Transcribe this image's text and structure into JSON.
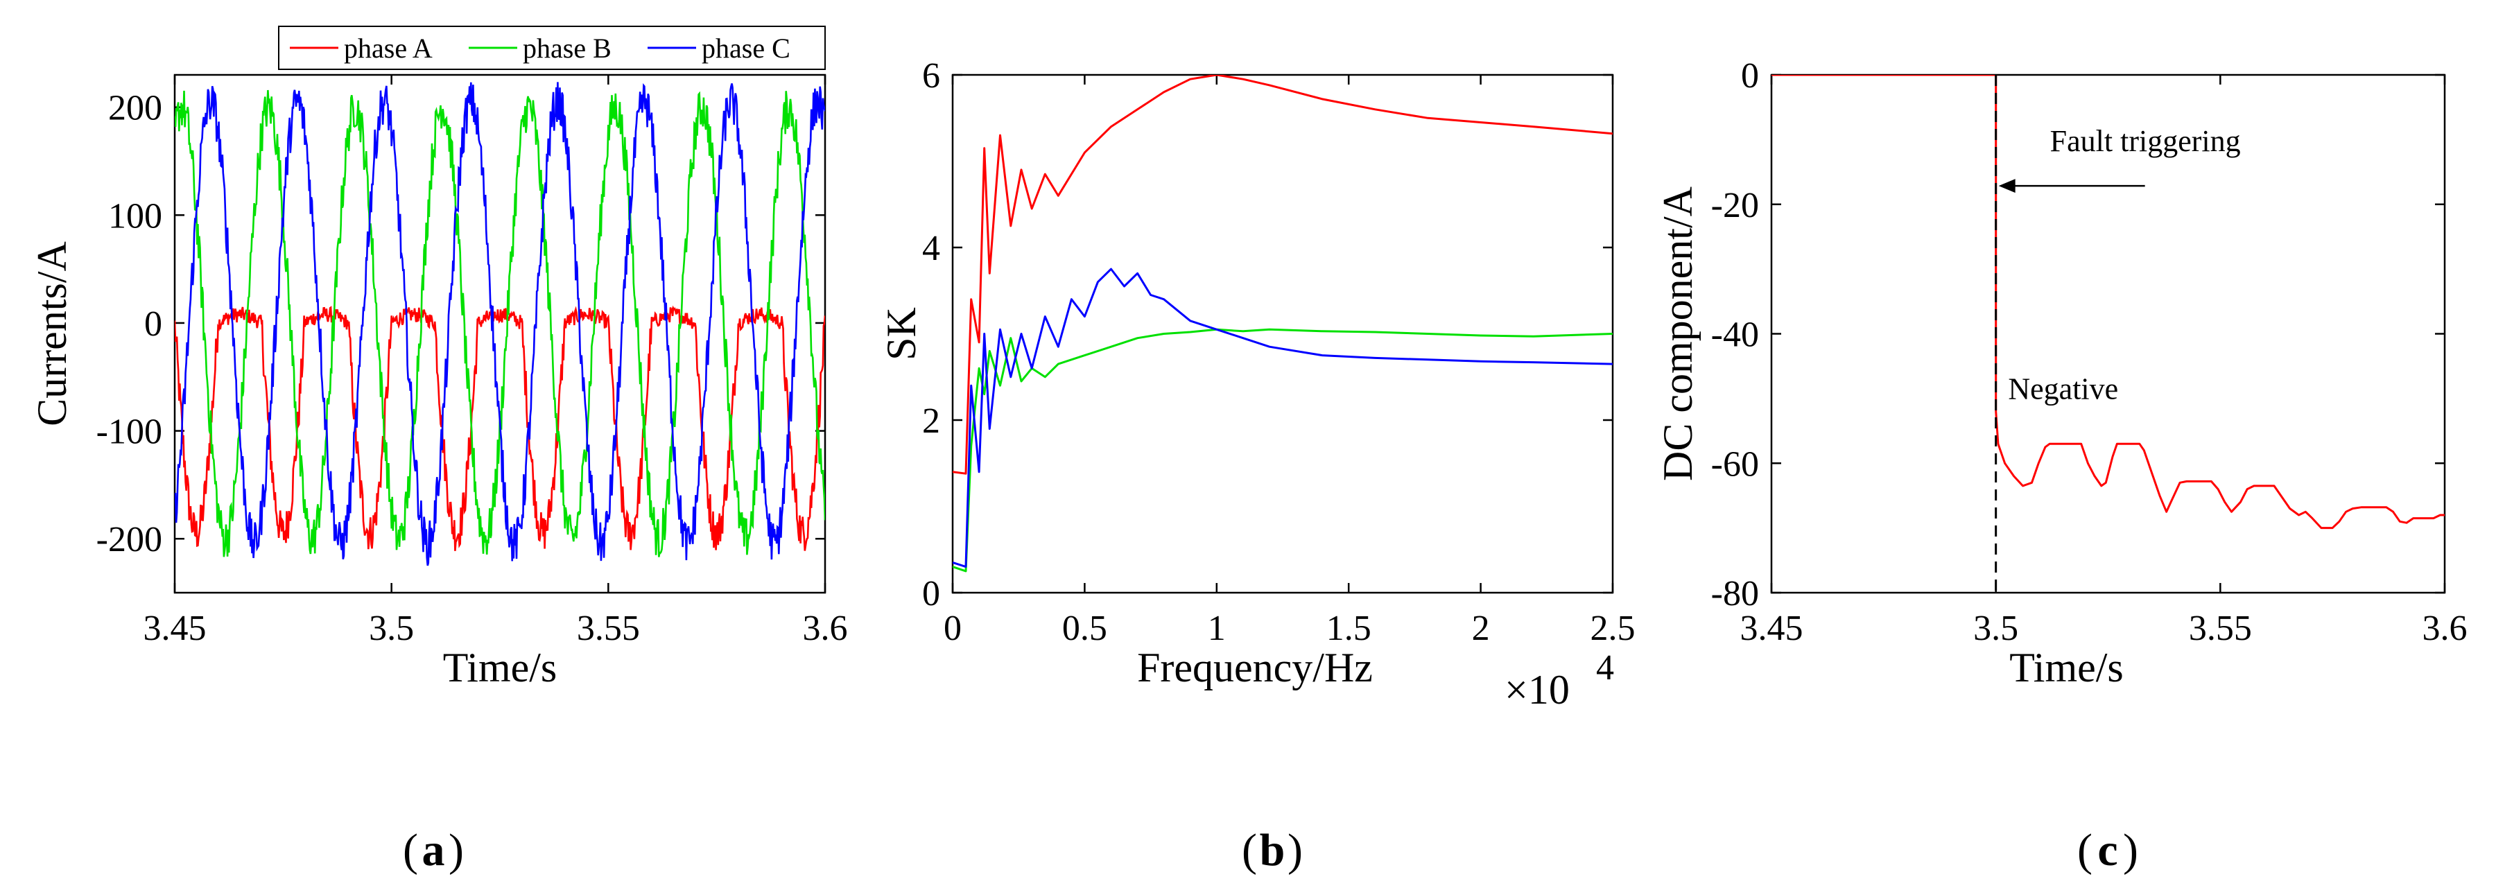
{
  "chart_data": [
    {
      "id": "a",
      "type": "line",
      "caption_letter": "a",
      "xlabel": "Time/s",
      "ylabel": "Currents/A",
      "xlim": [
        3.45,
        3.6
      ],
      "ylim": [
        -250,
        230
      ],
      "xticks": [
        3.45,
        3.5,
        3.55,
        3.6
      ],
      "xtick_labels": [
        "3.45",
        "3.5",
        "3.55",
        "3.6"
      ],
      "yticks": [
        -200,
        -100,
        0,
        100,
        200
      ],
      "ytick_labels": [
        "-200",
        "-100",
        "0",
        "100",
        "200"
      ],
      "grid": false,
      "legend": {
        "placement": "top",
        "orientation": "horizontal"
      },
      "series": [
        {
          "name": "phase A",
          "color": "#ff0000",
          "kind": "fault_sine",
          "amplitude": 195,
          "phase_deg": 0,
          "freq_hz": 50,
          "noise": 18
        },
        {
          "name": "phase B",
          "color": "#00e000",
          "kind": "sine",
          "amplitude": 200,
          "phase_deg": -120,
          "freq_hz": 50,
          "noise": 20
        },
        {
          "name": "phase C",
          "color": "#0000ff",
          "kind": "sine",
          "amplitude": 205,
          "phase_deg": 120,
          "freq_hz": 50,
          "noise": 20
        }
      ]
    },
    {
      "id": "b",
      "type": "line",
      "caption_letter": "b",
      "xlabel": "Frequency/Hz",
      "ylabel": "SK",
      "x_multiplier": "×10",
      "x_multiplier_exp": "4",
      "xlim": [
        0,
        2.5
      ],
      "ylim": [
        0,
        6
      ],
      "xticks": [
        0,
        0.5,
        1,
        1.5,
        2,
        2.5
      ],
      "xtick_labels": [
        "0",
        "0.5",
        "1",
        "1.5",
        "2",
        "2.5"
      ],
      "yticks": [
        0,
        2,
        4,
        6
      ],
      "ytick_labels": [
        "0",
        "2",
        "4",
        "6"
      ],
      "grid": false,
      "series": [
        {
          "name": "phase A",
          "color": "#ff0000",
          "x": [
            0,
            0.05,
            0.07,
            0.1,
            0.12,
            0.14,
            0.18,
            0.22,
            0.26,
            0.3,
            0.35,
            0.4,
            0.5,
            0.6,
            0.7,
            0.8,
            0.9,
            1.0,
            1.1,
            1.2,
            1.4,
            1.6,
            1.8,
            2.0,
            2.2,
            2.5
          ],
          "y": [
            1.4,
            1.38,
            3.4,
            2.9,
            5.15,
            3.7,
            5.3,
            4.25,
            4.9,
            4.45,
            4.85,
            4.6,
            5.1,
            5.4,
            5.6,
            5.8,
            5.95,
            6.0,
            5.95,
            5.88,
            5.72,
            5.6,
            5.5,
            5.45,
            5.4,
            5.32
          ]
        },
        {
          "name": "phase B",
          "color": "#00e000",
          "x": [
            0,
            0.05,
            0.07,
            0.1,
            0.12,
            0.14,
            0.18,
            0.22,
            0.26,
            0.3,
            0.35,
            0.4,
            0.5,
            0.6,
            0.7,
            0.8,
            0.9,
            1.0,
            1.1,
            1.2,
            1.4,
            1.6,
            1.8,
            2.0,
            2.2,
            2.5
          ],
          "y": [
            0.3,
            0.25,
            1.7,
            2.6,
            2.3,
            2.8,
            2.4,
            2.95,
            2.45,
            2.6,
            2.5,
            2.65,
            2.75,
            2.85,
            2.95,
            3.0,
            3.02,
            3.05,
            3.03,
            3.05,
            3.03,
            3.02,
            3.0,
            2.98,
            2.97,
            3.0
          ]
        },
        {
          "name": "phase C",
          "color": "#0000ff",
          "x": [
            0,
            0.05,
            0.07,
            0.1,
            0.12,
            0.14,
            0.18,
            0.22,
            0.26,
            0.3,
            0.35,
            0.4,
            0.45,
            0.5,
            0.55,
            0.6,
            0.65,
            0.7,
            0.75,
            0.8,
            0.9,
            1.0,
            1.1,
            1.2,
            1.4,
            1.6,
            1.8,
            2.0,
            2.2,
            2.5
          ],
          "y": [
            0.35,
            0.3,
            2.4,
            1.4,
            3.0,
            1.9,
            3.05,
            2.5,
            3.0,
            2.6,
            3.2,
            2.85,
            3.4,
            3.2,
            3.6,
            3.75,
            3.55,
            3.7,
            3.45,
            3.4,
            3.15,
            3.05,
            2.95,
            2.85,
            2.75,
            2.72,
            2.7,
            2.68,
            2.67,
            2.65
          ]
        }
      ]
    },
    {
      "id": "c",
      "type": "line",
      "caption_letter": "c",
      "xlabel": "Time/s",
      "ylabel": "DC component/A",
      "xlim": [
        3.45,
        3.6
      ],
      "ylim": [
        -80,
        0
      ],
      "xticks": [
        3.45,
        3.5,
        3.55,
        3.6
      ],
      "xtick_labels": [
        "3.45",
        "3.5",
        "3.55",
        "3.6"
      ],
      "yticks": [
        -80,
        -60,
        -40,
        -20,
        0
      ],
      "ytick_labels": [
        "-80",
        "-60",
        "-40",
        "-20",
        "0"
      ],
      "grid": false,
      "series": [
        {
          "name": "DC component",
          "color": "#ff0000",
          "x": [
            3.45,
            3.5,
            3.5,
            3.5005,
            3.502,
            3.504,
            3.506,
            3.508,
            3.5095,
            3.511,
            3.512,
            3.519,
            3.5205,
            3.522,
            3.5235,
            3.5245,
            3.526,
            3.527,
            3.532,
            3.533,
            3.535,
            3.5365,
            3.538,
            3.539,
            3.541,
            3.5425,
            3.548,
            3.5495,
            3.551,
            3.5525,
            3.5545,
            3.556,
            3.5575,
            3.562,
            3.5635,
            3.5655,
            3.5675,
            3.569,
            3.5705,
            3.5725,
            3.575,
            3.5765,
            3.578,
            3.5795,
            3.5815,
            3.587,
            3.5885,
            3.59,
            3.5915,
            3.593,
            3.5975,
            3.599,
            3.6
          ],
          "y": [
            0,
            0,
            -52,
            -57,
            -60,
            -62,
            -63.5,
            -63,
            -60,
            -57.5,
            -57,
            -57,
            -60,
            -62,
            -63.5,
            -63,
            -59,
            -57,
            -57,
            -58,
            -62,
            -65,
            -67.5,
            -66,
            -63,
            -62.8,
            -62.8,
            -64,
            -66,
            -67.5,
            -66,
            -64,
            -63.5,
            -63.5,
            -65,
            -67,
            -68,
            -67.5,
            -68.5,
            -70,
            -70,
            -69,
            -67.5,
            -67,
            -66.8,
            -66.8,
            -67.5,
            -69,
            -69.2,
            -68.5,
            -68.5,
            -68,
            -68
          ]
        }
      ],
      "marker_x": 3.5,
      "annotations": [
        {
          "text": "Fault triggering",
          "x": 3.5,
          "y": -15
        },
        {
          "text": "Negative",
          "x": 3.515,
          "y": -49
        }
      ]
    }
  ],
  "captions": [
    "a",
    "b",
    "c"
  ],
  "colors": {
    "phase_a": "#ff0000",
    "phase_b": "#00e000",
    "phase_c": "#0000ff",
    "annotation_red": "#ff0000",
    "axis": "#000000"
  }
}
